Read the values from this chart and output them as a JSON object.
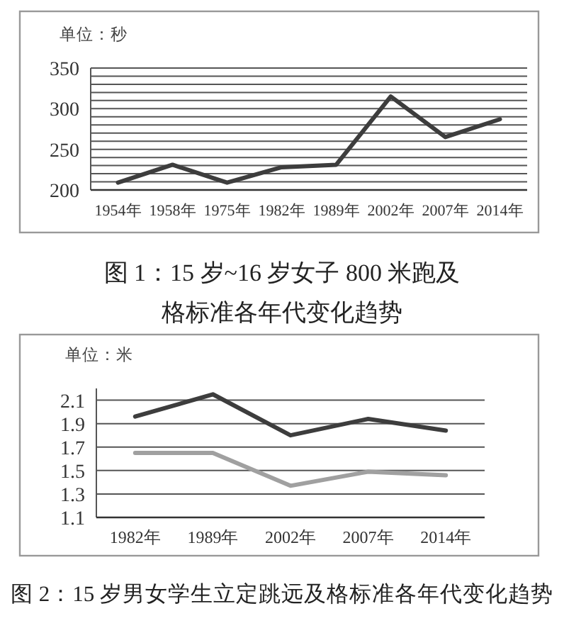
{
  "chart_data": [
    {
      "type": "line",
      "title": "图 1：15 岁~16 岁女子 800 米跑及格标准各年代变化趋势",
      "ylabel": "单位：秒",
      "categories": [
        "1954年",
        "1958年",
        "1975年",
        "1982年",
        "1989年",
        "2002年",
        "2007年",
        "2014年"
      ],
      "series": [
        {
          "color": "#3d3d3d",
          "values": [
            209,
            231,
            209,
            228,
            231,
            315,
            265,
            287
          ]
        }
      ],
      "ylim": [
        200,
        350
      ],
      "yticks": [
        200,
        {
          "value": 210,
          "label": null
        },
        {
          "value": 220,
          "label": null
        },
        {
          "value": 230,
          "label": null
        },
        {
          "value": 240,
          "label": null
        },
        250,
        {
          "value": 260,
          "label": null
        },
        {
          "value": 270,
          "label": null
        },
        {
          "value": 280,
          "label": null
        },
        {
          "value": 290,
          "label": null
        },
        300,
        {
          "value": 310,
          "label": null
        },
        {
          "value": 320,
          "label": null
        },
        {
          "value": 330,
          "label": null
        },
        {
          "value": 340,
          "label": null
        },
        350
      ],
      "grid": "y",
      "marker": "none",
      "line_style": "solid"
    },
    {
      "type": "line",
      "title": "图 2：15 岁男女学生立定跳远及格标准各年代变化趋势",
      "ylabel": "单位：米",
      "categories": [
        "1982年",
        "1989年",
        "2002年",
        "2007年",
        "2014年"
      ],
      "series": [
        {
          "color": "#3d3d3d",
          "values": [
            1.96,
            2.15,
            1.8,
            1.94,
            1.84
          ]
        },
        {
          "color": "#a0a0a0",
          "values": [
            1.65,
            1.65,
            1.37,
            1.49,
            1.46
          ]
        }
      ],
      "ylim": [
        1.1,
        2.2
      ],
      "yticks": [
        1.1,
        1.3,
        1.5,
        1.7,
        1.9,
        2.1
      ],
      "grid": "y",
      "marker": "none",
      "line_style": "solid"
    }
  ]
}
